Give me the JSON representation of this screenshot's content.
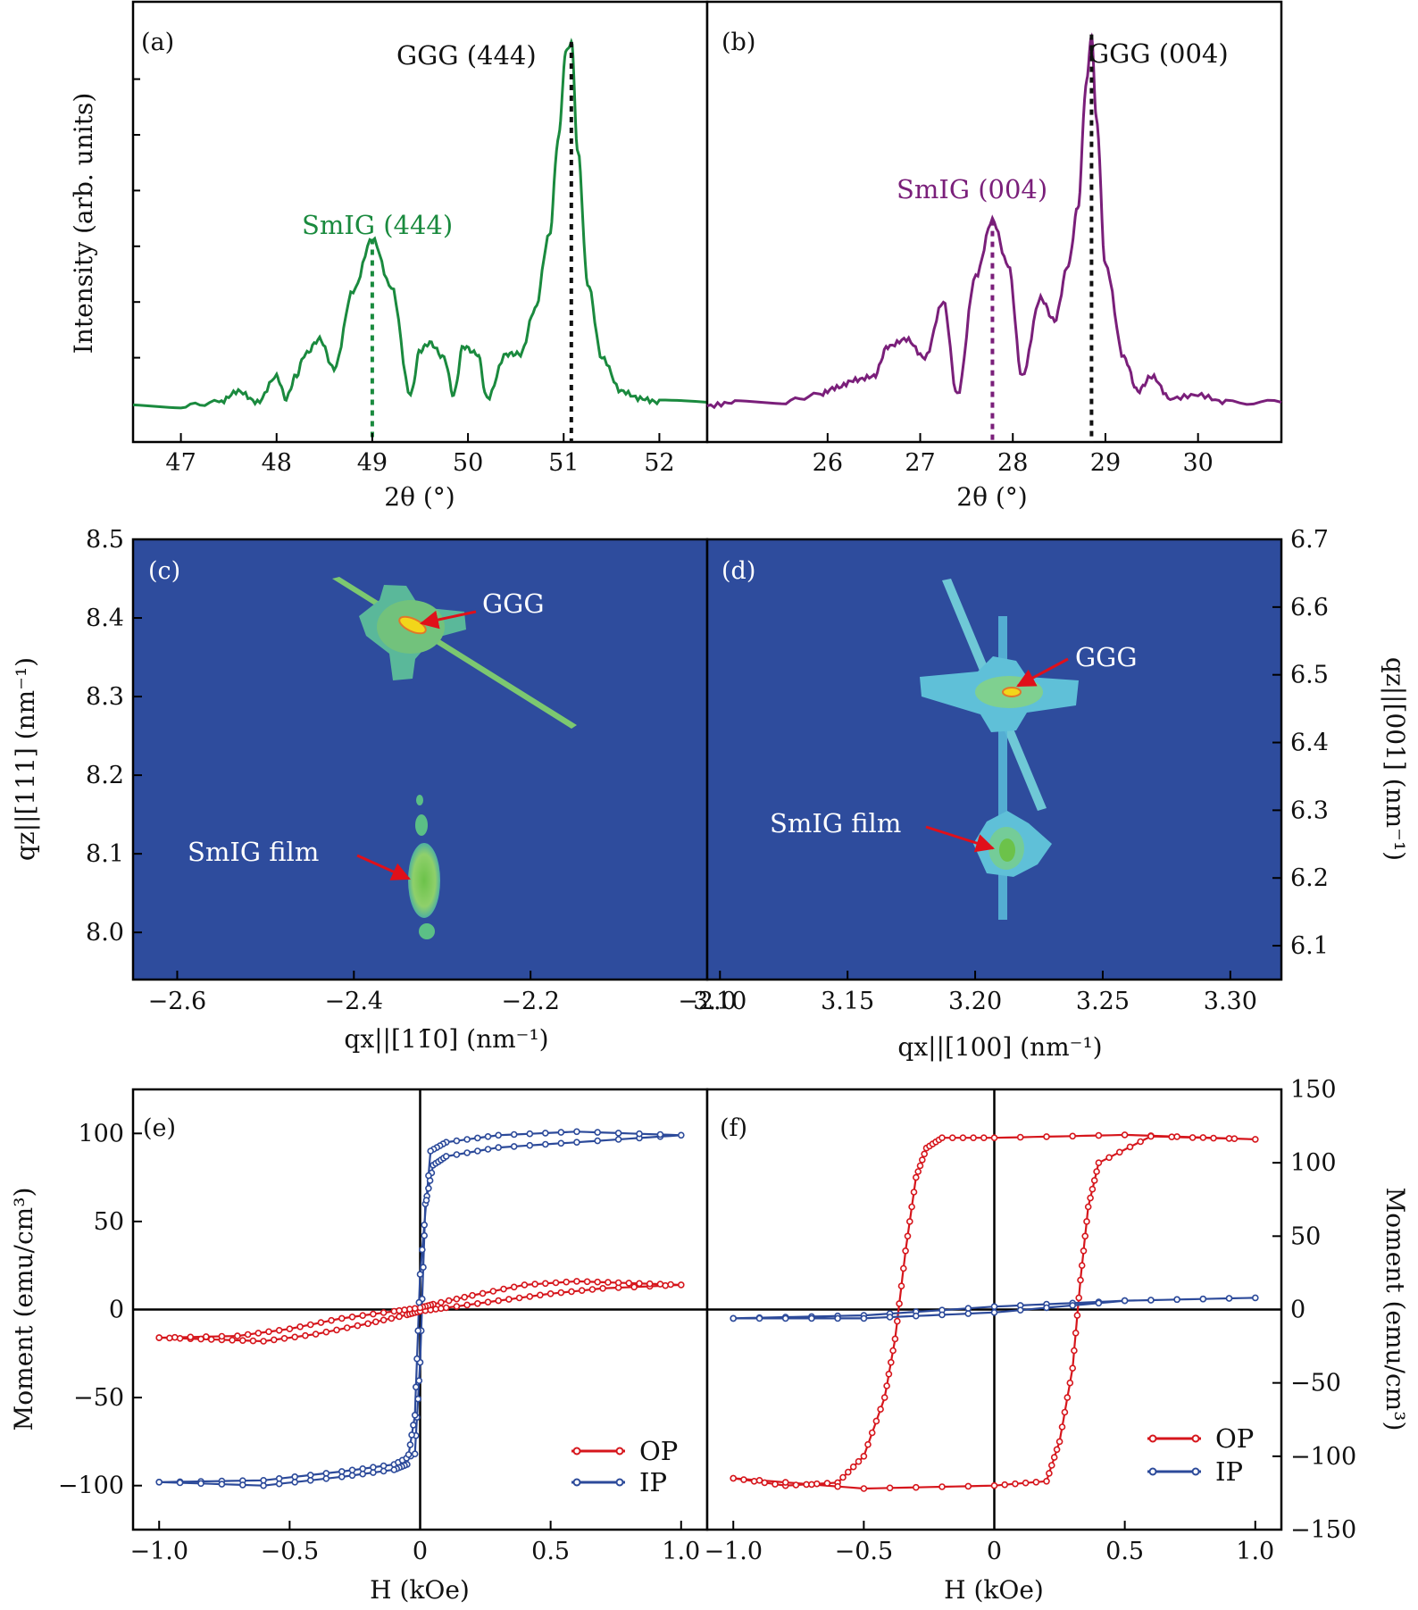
{
  "chart_data": [
    {
      "panel": "(a)",
      "type": "line",
      "xlabel": "2θ (°)",
      "ylabel": "Intensity (arb. units)",
      "xlim": [
        46.5,
        52.5
      ],
      "xticks": [
        "47",
        "48",
        "49",
        "50",
        "51",
        "52"
      ],
      "color": "#1a8a3e",
      "peaks": [
        {
          "label": "SmIG (444)",
          "x": 49.0,
          "color": "#1a8a3e"
        },
        {
          "label": "GGG (444)",
          "x": 51.08,
          "color": "#111111"
        }
      ],
      "series": [
        {
          "x": [
            46.5,
            47.0,
            47.4,
            47.6,
            47.8,
            48.0,
            48.1,
            48.2,
            48.3,
            48.45,
            48.6,
            48.8,
            49.0,
            49.2,
            49.4,
            49.5,
            49.6,
            49.75,
            49.85,
            49.95,
            50.1,
            50.2,
            50.4,
            50.55,
            50.7,
            50.85,
            50.95,
            51.02,
            51.08,
            51.15,
            51.25,
            51.4,
            51.6,
            51.8,
            52.0,
            52.5
          ],
          "y": [
            0.02,
            0.02,
            0.03,
            0.06,
            0.03,
            0.1,
            0.04,
            0.1,
            0.16,
            0.2,
            0.12,
            0.33,
            0.47,
            0.34,
            0.05,
            0.17,
            0.19,
            0.15,
            0.05,
            0.18,
            0.16,
            0.04,
            0.16,
            0.16,
            0.28,
            0.48,
            0.75,
            0.97,
            1.0,
            0.7,
            0.35,
            0.15,
            0.06,
            0.04,
            0.03,
            0.03
          ]
        }
      ]
    },
    {
      "panel": "(b)",
      "type": "line",
      "xlabel": "2θ (°)",
      "xlim": [
        24.7,
        30.9
      ],
      "xticks": [
        "26",
        "27",
        "28",
        "29",
        "30"
      ],
      "color": "#7a1f7a",
      "peaks": [
        {
          "label": "SmIG (004)",
          "x": 27.78,
          "color": "#7a1f7a"
        },
        {
          "label": "GGG (004)",
          "x": 28.85,
          "color": "#111111"
        }
      ],
      "series": [
        {
          "x": [
            24.7,
            25.0,
            25.5,
            25.9,
            26.1,
            26.3,
            26.5,
            26.65,
            26.85,
            27.05,
            27.25,
            27.4,
            27.6,
            27.78,
            27.95,
            28.1,
            28.3,
            28.45,
            28.6,
            28.7,
            28.8,
            28.85,
            28.9,
            29.0,
            29.2,
            29.35,
            29.5,
            29.7,
            30.0,
            30.3,
            30.9
          ],
          "y": [
            0.02,
            0.03,
            0.03,
            0.05,
            0.07,
            0.09,
            0.1,
            0.18,
            0.2,
            0.15,
            0.3,
            0.05,
            0.37,
            0.52,
            0.4,
            0.1,
            0.31,
            0.25,
            0.4,
            0.55,
            0.9,
            1.02,
            0.8,
            0.4,
            0.15,
            0.06,
            0.1,
            0.04,
            0.05,
            0.03,
            0.03
          ]
        }
      ]
    },
    {
      "panel": "(c)",
      "type": "heatmap",
      "xlabel": "qx||[11̄0] (nm⁻¹)",
      "ylabel": "qz||[111] (nm⁻¹)",
      "xlim": [
        -2.65,
        -2.0
      ],
      "ylim": [
        7.94,
        8.5
      ],
      "xticks": [
        "−2.6",
        "−2.4",
        "−2.2",
        "−2.0"
      ],
      "yticks": [
        "8.0",
        "8.1",
        "8.2",
        "8.3",
        "8.4",
        "8.5"
      ],
      "spots": [
        {
          "label": "GGG",
          "qx": -2.315,
          "qz": 8.39
        },
        {
          "label": "SmIG film",
          "qx": -2.315,
          "qz": 8.075
        }
      ]
    },
    {
      "panel": "(d)",
      "type": "heatmap",
      "xlabel": "qx||[100] (nm⁻¹)",
      "ylabel": "qz||[001] (nm⁻¹)",
      "xlim": [
        3.095,
        3.32
      ],
      "ylim": [
        6.05,
        6.7
      ],
      "xticks": [
        "3.10",
        "3.15",
        "3.20",
        "3.25",
        "3.30"
      ],
      "yticks": [
        "6.1",
        "6.2",
        "6.3",
        "6.4",
        "6.5",
        "6.6",
        "6.7"
      ],
      "spots": [
        {
          "label": "GGG",
          "qx": 3.212,
          "qz": 6.47
        },
        {
          "label": "SmIG film",
          "qx": 3.207,
          "qz": 6.24
        }
      ]
    },
    {
      "panel": "(e)",
      "type": "line",
      "xlabel": "H (kOe)",
      "ylabel": "Moment (emu/cm³)",
      "xlim": [
        -1.1,
        1.1
      ],
      "ylim": [
        -125,
        125
      ],
      "xticks": [
        "−1.0",
        "−0.5",
        "0",
        "0.5",
        "1.0"
      ],
      "yticks": [
        "−100",
        "−50",
        "0",
        "50",
        "100"
      ],
      "legend": [
        "OP",
        "IP"
      ],
      "series": [
        {
          "name": "OP",
          "color": "#d6161c",
          "x": [
            -1.0,
            -0.8,
            -0.6,
            -0.4,
            -0.2,
            -0.05,
            0.0,
            0.1,
            0.3,
            0.5,
            0.7,
            1.0,
            0.8,
            0.6,
            0.4,
            0.2,
            0.05,
            0.0,
            -0.1,
            -0.3,
            -0.5,
            -0.7,
            -1.0
          ],
          "y": [
            -16,
            -17,
            -18,
            -14,
            -8,
            -3,
            -1,
            1,
            5,
            9,
            12,
            14,
            15,
            16,
            14,
            8,
            3,
            1,
            -1,
            -5,
            -11,
            -15,
            -16
          ]
        },
        {
          "name": "IP",
          "color": "#2c4a9a",
          "x": [
            -1.0,
            -0.6,
            -0.3,
            -0.1,
            -0.02,
            0.0,
            0.02,
            0.05,
            0.1,
            0.3,
            0.6,
            1.0,
            0.6,
            0.3,
            0.1,
            0.04,
            0.0,
            -0.02,
            -0.05,
            -0.1,
            -0.3,
            -0.6,
            -1.0
          ],
          "y": [
            -98,
            -97,
            -92,
            -88,
            -82,
            -30,
            60,
            82,
            87,
            92,
            95,
            99,
            101,
            99,
            95,
            90,
            20,
            -60,
            -88,
            -91,
            -95,
            -100,
            -98
          ]
        }
      ]
    },
    {
      "panel": "(f)",
      "type": "line",
      "xlabel": "H (kOe)",
      "ylabel": "Moment (emu/cm³)",
      "xlim": [
        -1.1,
        1.1
      ],
      "ylim": [
        -150,
        150
      ],
      "xticks": [
        "−1.0",
        "−0.5",
        "0",
        "0.5",
        "1.0"
      ],
      "yticks": [
        "−150",
        "−100",
        "−50",
        "0",
        "50",
        "100",
        "150"
      ],
      "legend": [
        "OP",
        "IP"
      ],
      "series": [
        {
          "name": "OP",
          "color": "#d6161c",
          "x": [
            -1.0,
            -0.8,
            -0.6,
            -0.5,
            -0.42,
            -0.38,
            -0.34,
            -0.3,
            -0.26,
            -0.2,
            0.0,
            0.5,
            1.0,
            0.6,
            0.4,
            0.36,
            0.33,
            0.3,
            0.25,
            0.2,
            0.0,
            -0.5,
            -1.0
          ],
          "y": [
            -115,
            -120,
            -118,
            -100,
            -60,
            -20,
            40,
            90,
            110,
            117,
            117,
            119,
            116,
            118,
            100,
            70,
            20,
            -40,
            -90,
            -117,
            -120,
            -122,
            -115
          ]
        },
        {
          "name": "IP",
          "color": "#2c4a9a",
          "x": [
            -1.0,
            -0.5,
            0.0,
            0.5,
            1.0,
            0.5,
            0.0,
            -0.5,
            -1.0
          ],
          "y": [
            -6,
            -4,
            2,
            6,
            8,
            6,
            -2,
            -6,
            -6
          ]
        }
      ]
    }
  ]
}
